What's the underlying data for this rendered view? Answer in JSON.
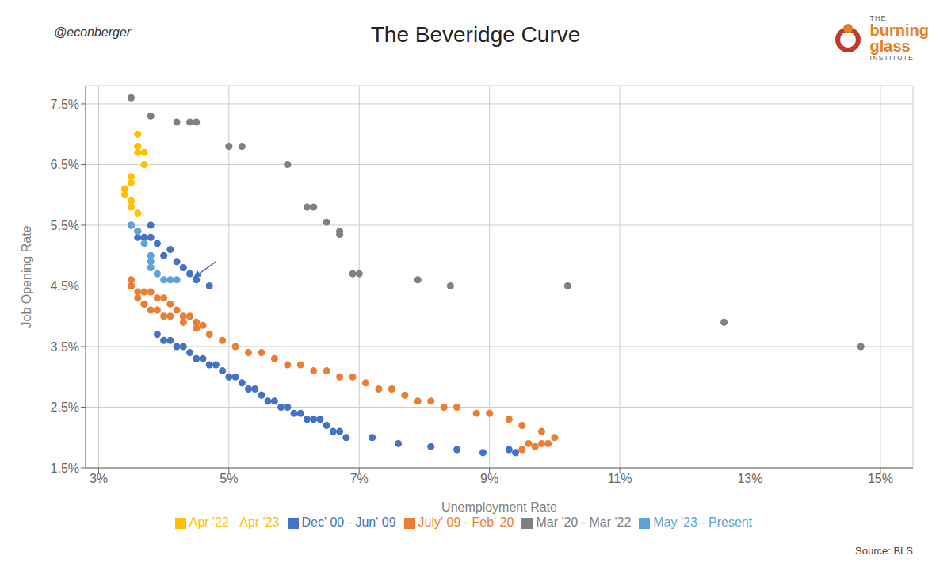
{
  "chart_data": {
    "type": "scatter",
    "title": "The Beveridge Curve",
    "xlabel": "Unemployment Rate",
    "ylabel": "Job Opening Rate",
    "annotations": [
      {
        "text": "@econberger",
        "position": "top-left"
      },
      {
        "text": "Source: BLS",
        "position": "bottom-right"
      },
      {
        "text": "THE",
        "position": "top-right"
      },
      {
        "text": "burning",
        "position": "top-right"
      },
      {
        "text": "glass",
        "position": "top-right"
      },
      {
        "text": "INSTITUTE",
        "position": "top-right"
      }
    ],
    "arrow": {
      "start": [
        4.8,
        4.9
      ],
      "end": [
        4.45,
        4.63
      ],
      "color": "#4472C4"
    },
    "grid": true,
    "legend": "bottom",
    "xlim": [
      2.8,
      15.5
    ],
    "ylim": [
      1.5,
      7.8
    ],
    "xticks": [
      {
        "value": 3,
        "label": "3%"
      },
      {
        "value": 5,
        "label": "5%"
      },
      {
        "value": 7,
        "label": "7%"
      },
      {
        "value": 9,
        "label": "9%"
      },
      {
        "value": 11,
        "label": "11%"
      },
      {
        "value": 13,
        "label": "13%"
      },
      {
        "value": 15,
        "label": "15%"
      }
    ],
    "yticks": [
      {
        "value": 1.5,
        "label": "1.5%"
      },
      {
        "value": 2.5,
        "label": "2.5%"
      },
      {
        "value": 3.5,
        "label": "3.5%"
      },
      {
        "value": 4.5,
        "label": "4.5%"
      },
      {
        "value": 5.5,
        "label": "5.5%"
      },
      {
        "value": 6.5,
        "label": "6.5%"
      },
      {
        "value": 7.5,
        "label": "7.5%"
      }
    ],
    "series": [
      {
        "name": "Dec' 00 - Jun' 09",
        "color": "#4472C4",
        "points": [
          [
            3.9,
            3.7
          ],
          [
            4.0,
            3.6
          ],
          [
            4.1,
            3.6
          ],
          [
            4.2,
            3.5
          ],
          [
            4.3,
            3.5
          ],
          [
            4.4,
            3.4
          ],
          [
            4.5,
            3.3
          ],
          [
            4.6,
            3.3
          ],
          [
            4.7,
            3.2
          ],
          [
            4.8,
            3.2
          ],
          [
            4.9,
            3.1
          ],
          [
            5.0,
            3.0
          ],
          [
            5.1,
            3.0
          ],
          [
            5.2,
            2.9
          ],
          [
            5.3,
            2.8
          ],
          [
            5.4,
            2.8
          ],
          [
            5.5,
            2.7
          ],
          [
            5.6,
            2.6
          ],
          [
            5.7,
            2.6
          ],
          [
            5.8,
            2.5
          ],
          [
            5.9,
            2.5
          ],
          [
            6.0,
            2.4
          ],
          [
            6.1,
            2.4
          ],
          [
            6.2,
            2.3
          ],
          [
            6.3,
            2.3
          ],
          [
            6.4,
            2.3
          ],
          [
            6.5,
            2.2
          ],
          [
            6.6,
            2.1
          ],
          [
            6.7,
            2.1
          ],
          [
            6.8,
            2.0
          ],
          [
            7.2,
            2.0
          ],
          [
            7.6,
            1.9
          ],
          [
            8.1,
            1.85
          ],
          [
            8.5,
            1.8
          ],
          [
            8.9,
            1.75
          ],
          [
            9.3,
            1.8
          ],
          [
            9.4,
            1.75
          ],
          [
            3.8,
            5.5
          ],
          [
            3.7,
            5.3
          ],
          [
            3.6,
            5.4
          ],
          [
            3.5,
            5.5
          ],
          [
            3.6,
            5.3
          ],
          [
            3.8,
            5.3
          ],
          [
            3.9,
            5.2
          ],
          [
            4.1,
            5.1
          ],
          [
            4.0,
            5.0
          ],
          [
            4.2,
            4.9
          ],
          [
            4.3,
            4.8
          ],
          [
            4.4,
            4.7
          ],
          [
            4.5,
            4.6
          ],
          [
            4.7,
            4.5
          ]
        ]
      },
      {
        "name": "July' 09 - Feb' 20",
        "color": "#ED7D31",
        "points": [
          [
            9.5,
            1.8
          ],
          [
            9.6,
            1.9
          ],
          [
            9.7,
            1.85
          ],
          [
            9.8,
            1.9
          ],
          [
            9.9,
            1.9
          ],
          [
            10.0,
            2.0
          ],
          [
            9.8,
            2.1
          ],
          [
            9.5,
            2.2
          ],
          [
            9.3,
            2.3
          ],
          [
            9.0,
            2.4
          ],
          [
            8.8,
            2.4
          ],
          [
            8.5,
            2.5
          ],
          [
            8.3,
            2.5
          ],
          [
            8.1,
            2.6
          ],
          [
            7.9,
            2.6
          ],
          [
            7.7,
            2.7
          ],
          [
            7.5,
            2.8
          ],
          [
            7.3,
            2.8
          ],
          [
            7.1,
            2.9
          ],
          [
            6.9,
            3.0
          ],
          [
            6.7,
            3.0
          ],
          [
            6.5,
            3.1
          ],
          [
            6.3,
            3.1
          ],
          [
            6.1,
            3.2
          ],
          [
            5.9,
            3.2
          ],
          [
            5.7,
            3.3
          ],
          [
            5.5,
            3.4
          ],
          [
            5.3,
            3.4
          ],
          [
            5.1,
            3.5
          ],
          [
            4.9,
            3.6
          ],
          [
            4.7,
            3.7
          ],
          [
            4.5,
            3.8
          ],
          [
            4.3,
            3.9
          ],
          [
            4.1,
            4.0
          ],
          [
            3.9,
            4.1
          ],
          [
            3.7,
            4.2
          ],
          [
            3.5,
            4.5
          ],
          [
            3.6,
            4.4
          ],
          [
            3.7,
            4.4
          ],
          [
            3.8,
            4.4
          ],
          [
            3.9,
            4.3
          ],
          [
            4.0,
            4.3
          ],
          [
            4.1,
            4.2
          ],
          [
            4.2,
            4.1
          ],
          [
            4.3,
            4.0
          ],
          [
            4.4,
            4.0
          ],
          [
            4.5,
            3.9
          ],
          [
            4.6,
            3.85
          ],
          [
            3.5,
            4.6
          ],
          [
            3.5,
            4.5
          ],
          [
            3.6,
            4.3
          ],
          [
            3.7,
            4.2
          ],
          [
            3.8,
            4.1
          ],
          [
            4.0,
            4.0
          ]
        ]
      },
      {
        "name": "Mar '20 - Mar '22",
        "color": "#808080",
        "points": [
          [
            3.5,
            7.6
          ],
          [
            3.8,
            7.3
          ],
          [
            4.2,
            7.2
          ],
          [
            4.4,
            7.2
          ],
          [
            4.5,
            7.2
          ],
          [
            5.0,
            6.8
          ],
          [
            5.2,
            6.8
          ],
          [
            5.9,
            6.5
          ],
          [
            6.2,
            5.8
          ],
          [
            6.3,
            5.8
          ],
          [
            6.5,
            5.55
          ],
          [
            6.7,
            5.4
          ],
          [
            6.7,
            5.35
          ],
          [
            6.9,
            4.7
          ],
          [
            7.0,
            4.7
          ],
          [
            7.9,
            4.6
          ],
          [
            8.4,
            4.5
          ],
          [
            10.2,
            4.5
          ],
          [
            12.6,
            3.9
          ],
          [
            14.7,
            3.5
          ]
        ]
      },
      {
        "name": "Apr '22 - Apr '23",
        "color": "#FFC000",
        "points": [
          [
            3.6,
            7.0
          ],
          [
            3.6,
            6.8
          ],
          [
            3.6,
            6.8
          ],
          [
            3.6,
            6.7
          ],
          [
            3.7,
            6.7
          ],
          [
            3.7,
            6.5
          ],
          [
            3.5,
            6.3
          ],
          [
            3.5,
            6.2
          ],
          [
            3.4,
            6.1
          ],
          [
            3.4,
            6.0
          ],
          [
            3.5,
            5.9
          ],
          [
            3.5,
            5.8
          ],
          [
            3.6,
            5.7
          ]
        ]
      },
      {
        "name": "May '23 - Present",
        "color": "#5BA3D9",
        "points": [
          [
            3.5,
            5.5
          ],
          [
            3.6,
            5.4
          ],
          [
            3.7,
            5.2
          ],
          [
            3.8,
            5.0
          ],
          [
            3.8,
            4.9
          ],
          [
            3.8,
            4.8
          ],
          [
            3.9,
            4.7
          ],
          [
            4.0,
            4.6
          ],
          [
            4.1,
            4.6
          ],
          [
            4.2,
            4.6
          ]
        ]
      }
    ]
  }
}
